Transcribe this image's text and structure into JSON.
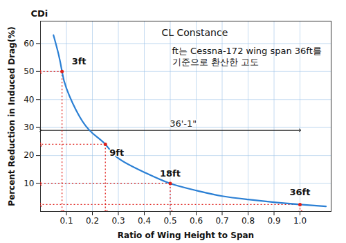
{
  "chart_data": {
    "type": "line",
    "title": "CL Constance",
    "subtitle": [
      "ft는 Cessna-172 wing span 36ft를",
      "기준으로 환산한 고도"
    ],
    "y_title": "CDi",
    "xlabel": "Ratio of Wing Height to Span",
    "ylabel": "Percent Reduction in Induced Drag(%)",
    "x": [
      0.05,
      0.07,
      0.083,
      0.1,
      0.15,
      0.2,
      0.25,
      0.3,
      0.4,
      0.5,
      0.6,
      0.7,
      0.8,
      0.9,
      1.0,
      1.1
    ],
    "values": [
      63,
      56,
      50,
      44,
      34,
      28,
      24,
      19,
      14,
      10,
      7.5,
      5.5,
      4.3,
      3.3,
      2.5,
      1.8
    ],
    "color": "#2a7fd4",
    "xlim": [
      0,
      1.12
    ],
    "ylim": [
      0,
      68
    ],
    "xticks": [
      0.1,
      0.2,
      0.3,
      0.4,
      0.5,
      0.6,
      0.7,
      0.8,
      0.9,
      {
        "value": 1.0,
        "label": "1.0"
      }
    ],
    "yticks": [
      10,
      20,
      30,
      40,
      50,
      60
    ],
    "grid": true,
    "annotations": [
      {
        "text": "3ft",
        "x": 0.083,
        "y": 50,
        "color": "#e0201b",
        "line_style": "dotted"
      },
      {
        "text": "9ft",
        "x": 0.25,
        "y": 24,
        "color": "#e0201b",
        "line_style": "dotted"
      },
      {
        "text": "18ft",
        "x": 0.5,
        "y": 10,
        "color": "#e0201b",
        "line_style": "dotted"
      },
      {
        "text": "36ft",
        "x": 1.0,
        "y": 2.5,
        "color": "#e0201b",
        "line_style": "dotted"
      }
    ],
    "dimension": {
      "text": "36'-1\"",
      "x1": 0,
      "x2": 1.0,
      "y": 29
    }
  }
}
